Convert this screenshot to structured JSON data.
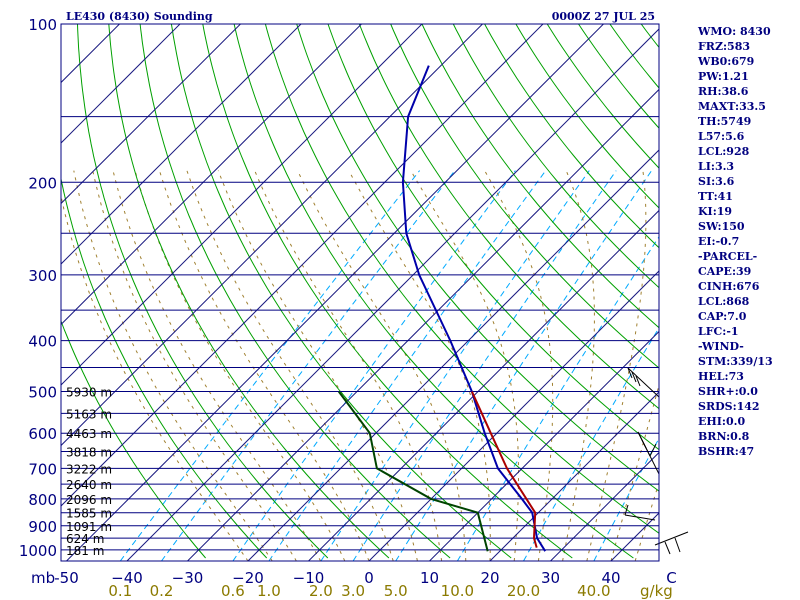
{
  "header": {
    "title": "LE430 (8430) Sounding",
    "valid_time": "0000Z 27 JUL 25"
  },
  "side_panel": [
    "WMO: 8430",
    "FRZ:583",
    "WB0:679",
    "PW:1.21",
    "RH:38.6",
    "MAXT:33.5",
    "TH:5749",
    "L57:5.6",
    "LCL:928",
    "LI:3.3",
    "SI:3.6",
    "TT:41",
    "KI:19",
    "SW:150",
    "EI:-0.7",
    "-PARCEL-",
    "CAPE:39",
    "CINH:676",
    "LCL:868",
    "CAP:7.0",
    "LFC:-1",
    "-WIND-",
    "STM:339/13",
    "HEL:73",
    "SHR+:0.0",
    "SRDS:142",
    "EHI:0.0",
    "BRN:0.8",
    "BSHR:47"
  ],
  "colors": {
    "frame": "#000080",
    "isobar": "#000080",
    "isotherm": "#1a1a80",
    "dry_adiabat": "#00a000",
    "moist_adiabat": "#a08030",
    "mixing_ratio": "#00aaff",
    "temperature": "#0000aa",
    "dewpoint": "#004400",
    "parcel": "#aa0000",
    "height_label": "#000000",
    "mixing_label": "#8b7a00"
  },
  "chart_data": {
    "type": "skew-t",
    "title": "LE430 (8430) Sounding",
    "pressure_axis_label": "mb",
    "pressure_ticks": [
      100,
      200,
      300,
      400,
      500,
      600,
      700,
      800,
      900,
      1000
    ],
    "pressure_tick_labels": [
      "100",
      "200",
      "300",
      "400",
      "500",
      "600",
      "700",
      "800",
      "900",
      "1000"
    ],
    "isobar_levels": [
      100,
      150,
      200,
      250,
      300,
      350,
      400,
      450,
      500,
      550,
      600,
      650,
      700,
      750,
      800,
      850,
      900,
      950,
      1000,
      1050
    ],
    "temperature_ticks": [
      -50,
      -40,
      -30,
      -20,
      -10,
      0,
      10,
      20,
      30,
      40,
      50
    ],
    "temperature_tick_labels": [
      "-50",
      "−40",
      "−30",
      "−20",
      "−10",
      "0",
      "10",
      "20",
      "30",
      "40",
      "C"
    ],
    "mixing_ratio_ticks": [
      0.1,
      0.2,
      0.6,
      1.0,
      2.0,
      3.0,
      5.0,
      10.0,
      20.0,
      40.0
    ],
    "mixing_ratio_tick_labels": [
      "0.1",
      "0.2",
      "0.6",
      "1.0",
      "2.0",
      "3.0",
      "5.0",
      "10.0",
      "20.0",
      "40.0"
    ],
    "mixing_ratio_unit": "g/kg",
    "height_labels": [
      {
        "p": 500,
        "text": "5930 m"
      },
      {
        "p": 550,
        "text": "5163 m"
      },
      {
        "p": 600,
        "text": "4463 m"
      },
      {
        "p": 650,
        "text": "3818 m"
      },
      {
        "p": 700,
        "text": "3222 m"
      },
      {
        "p": 750,
        "text": "2640 m"
      },
      {
        "p": 800,
        "text": "2096 m"
      },
      {
        "p": 850,
        "text": "1585 m"
      },
      {
        "p": 900,
        "text": "1091 m"
      },
      {
        "p": 950,
        "text": "624 m"
      },
      {
        "p": 1000,
        "text": "181 m"
      }
    ],
    "series": [
      {
        "p": [
          1006,
          950,
          850,
          800,
          700,
          600,
          500,
          400,
          300,
          250,
          200,
          150,
          120
        ],
        "t": [
          27.5,
          24,
          19,
          15,
          6,
          -2,
          -11,
          -23,
          -39,
          -48,
          -57,
          -67,
          -72
        ]
      },
      {
        "p": [
          1006,
          850,
          800,
          700,
          600,
          500
        ],
        "t": [
          18,
          10,
          0,
          -14,
          -21,
          -33
        ]
      },
      {
        "p": [
          990,
          950,
          850,
          700,
          600,
          500
        ],
        "t": [
          25.5,
          23.5,
          19.5,
          7.5,
          -1,
          -11
        ]
      }
    ]
  }
}
